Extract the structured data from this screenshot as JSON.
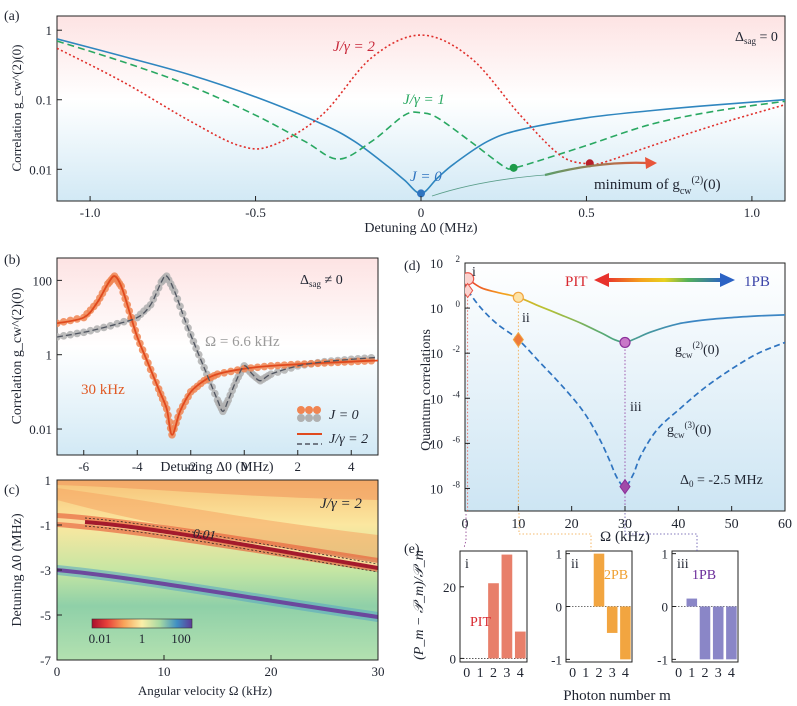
{
  "chart_data": [
    {
      "panel": "(a)",
      "type": "line",
      "title": "",
      "xlabel": "Detuning Δ0 (MHz)",
      "ylabel": "Correlation g_cw^(2)(0)",
      "yscale": "log",
      "xlim": [
        -1.1,
        1.1
      ],
      "ylim": [
        0.0035,
        1.6
      ],
      "x_ticks": [
        "-1.0",
        "-0.5",
        "0",
        "0.5",
        "1.0"
      ],
      "x_tick_values": [
        -1.0,
        -0.5,
        0,
        0.5,
        1.0
      ],
      "y_ticks": [
        "1",
        "0.1",
        "0.01"
      ],
      "y_tick_values": [
        1,
        0.1,
        0.01
      ],
      "annotations": [
        "Δsag = 0",
        "J/γ = 2",
        "J/γ = 1",
        "J = 0",
        "minimum of g_cw^(2)(0)"
      ],
      "series": [
        {
          "name": "J = 0",
          "style": "solid",
          "color": "#2f86bf",
          "x": [
            -1.1,
            -0.9,
            -0.7,
            -0.5,
            -0.3,
            -0.2,
            -0.1,
            -0.05,
            0,
            0.05,
            0.1,
            0.2,
            0.3,
            0.5,
            0.7,
            0.9,
            1.1
          ],
          "y": [
            0.75,
            0.42,
            0.23,
            0.11,
            0.045,
            0.025,
            0.011,
            0.007,
            0.0045,
            0.0075,
            0.012,
            0.025,
            0.037,
            0.055,
            0.07,
            0.085,
            0.1
          ]
        },
        {
          "name": "J/γ = 1",
          "style": "dashed",
          "color": "#2aa862",
          "x": [
            -1.1,
            -0.9,
            -0.7,
            -0.5,
            -0.35,
            -0.25,
            -0.15,
            -0.05,
            0,
            0.05,
            0.15,
            0.25,
            0.28,
            0.35,
            0.5,
            0.7,
            0.9,
            1.1
          ],
          "y": [
            0.7,
            0.35,
            0.16,
            0.06,
            0.025,
            0.014,
            0.025,
            0.06,
            0.065,
            0.055,
            0.025,
            0.011,
            0.0105,
            0.013,
            0.022,
            0.045,
            0.07,
            0.095
          ]
        },
        {
          "name": "J/γ = 2",
          "style": "dotted",
          "color": "#e0302c",
          "x": [
            -1.1,
            -0.9,
            -0.7,
            -0.55,
            -0.45,
            -0.3,
            -0.15,
            0,
            0.15,
            0.3,
            0.42,
            0.5,
            0.55,
            0.7,
            0.9,
            1.1
          ],
          "y": [
            0.55,
            0.18,
            0.05,
            0.022,
            0.022,
            0.06,
            0.4,
            0.85,
            0.4,
            0.06,
            0.016,
            0.012,
            0.0125,
            0.022,
            0.045,
            0.085
          ]
        }
      ],
      "highlight_points": [
        {
          "x": 0,
          "y": 0.0045,
          "color": "#2f74c0"
        },
        {
          "x": 0.28,
          "y": 0.0105,
          "color": "#1e9b4a"
        },
        {
          "x": 0.51,
          "y": 0.0122,
          "color": "#b81f2a"
        }
      ]
    },
    {
      "panel": "(b)",
      "type": "line",
      "xlabel": "Detuning Δ0 (MHz)",
      "ylabel": "Correlation g_cw^(2)(0)",
      "yscale": "log",
      "xlim": [
        -7,
        5
      ],
      "ylim": [
        0.002,
        400
      ],
      "x_ticks": [
        "-6",
        "-4",
        "-2",
        "0",
        "2",
        "4"
      ],
      "x_tick_values": [
        -6,
        -4,
        -2,
        0,
        2,
        4
      ],
      "y_ticks": [
        "100",
        "1",
        "0.01"
      ],
      "y_tick_values": [
        100,
        1,
        0.01
      ],
      "annotations": [
        "Δsag ≠ 0",
        "Ω = 6.6 kHz",
        "30 kHz"
      ],
      "legend": [
        "J = 0",
        "J/γ = 2"
      ],
      "series": [
        {
          "name": "30 kHz",
          "style": "solid",
          "color": "#e04a1e",
          "x": [
            -7,
            -6,
            -5.5,
            -5.1,
            -4.85,
            -4.6,
            -4.3,
            -4,
            -3.6,
            -3.2,
            -2.9,
            -2.7,
            -2.4,
            -2,
            -1.5,
            -1,
            0,
            1,
            2,
            3,
            4,
            5
          ],
          "y": [
            7,
            10,
            25,
            80,
            130,
            70,
            15,
            3,
            0.6,
            0.12,
            0.035,
            0.007,
            0.03,
            0.1,
            0.2,
            0.3,
            0.42,
            0.5,
            0.55,
            0.6,
            0.65,
            0.7
          ]
        },
        {
          "name": "Ω = 6.6 kHz",
          "style": "dashed",
          "color": "#505560",
          "x": [
            -7,
            -6,
            -5,
            -4,
            -3.5,
            -3.1,
            -2.9,
            -2.6,
            -2.2,
            -1.8,
            -1.4,
            -1,
            -0.8,
            -0.6,
            -0.3,
            0,
            0.3,
            0.6,
            1,
            2,
            3,
            4,
            5
          ],
          "y": [
            3,
            4,
            6,
            10,
            22,
            90,
            130,
            50,
            8,
            1.5,
            0.3,
            0.06,
            0.03,
            0.06,
            0.2,
            0.5,
            0.3,
            0.2,
            0.3,
            0.5,
            0.65,
            0.75,
            0.85
          ]
        }
      ]
    },
    {
      "panel": "(c)",
      "type": "heatmap",
      "xlabel": "Angular velocity Ω (kHz)",
      "ylabel": "Detuning Δ0 (MHz)",
      "xlim": [
        0,
        30
      ],
      "ylim": [
        -7,
        1
      ],
      "x_ticks": [
        "0",
        "10",
        "20",
        "30"
      ],
      "x_tick_values": [
        0,
        10,
        20,
        30
      ],
      "y_ticks": [
        "1",
        "-1",
        "-3",
        "-5",
        "-7"
      ],
      "y_tick_values": [
        1,
        -1,
        -3,
        -5,
        -7
      ],
      "colorbar_labels": [
        "0.01",
        "1",
        "100"
      ],
      "contour_label": "0.01",
      "annotation": "J/γ = 2"
    },
    {
      "panel": "(d)",
      "type": "line",
      "xlabel": "Ω (kHz)",
      "ylabel": "Quantum correlations",
      "yscale": "log",
      "xlim": [
        0,
        60
      ],
      "ylim": [
        1e-09,
        100
      ],
      "x_ticks": [
        "0",
        "10",
        "20",
        "30",
        "40",
        "50",
        "60"
      ],
      "x_tick_values": [
        0,
        10,
        20,
        30,
        40,
        50,
        60
      ],
      "y_ticks": [
        "10^2",
        "10^0",
        "10^-2",
        "10^-4",
        "10^-6",
        "10^-8"
      ],
      "y_tick_values": [
        2,
        0,
        -2,
        -4,
        -6,
        -8
      ],
      "annotations": [
        "PIT",
        "1PB",
        "Δ0 = -2.5 MHz",
        "i",
        "ii",
        "iii",
        "g_cw^(2)(0)",
        "g_cw^(3)(0)"
      ],
      "series": [
        {
          "name": "g_cw^(2)(0)",
          "style": "solid",
          "x": [
            0.5,
            3,
            6,
            10,
            14,
            18,
            22,
            26,
            28,
            30,
            32,
            35,
            40,
            45,
            50,
            55,
            60
          ],
          "y": [
            20,
            8,
            5,
            3,
            1.2,
            0.5,
            0.2,
            0.07,
            0.04,
            0.03,
            0.045,
            0.09,
            0.2,
            0.3,
            0.38,
            0.45,
            0.5
          ]
        },
        {
          "name": "g_cw^(3)(0)",
          "style": "dashed",
          "color": "#2f74c0",
          "x": [
            0.5,
            3,
            6,
            10,
            14,
            18,
            22,
            25,
            27,
            28.5,
            30,
            31.5,
            33,
            36,
            40,
            45,
            50,
            55,
            60
          ],
          "y": [
            6,
            1,
            0.2,
            0.04,
            0.004,
            0.0004,
            3e-05,
            2e-06,
            2e-07,
            3e-08,
            1.2e-08,
            4e-08,
            3e-07,
            4e-06,
            3e-05,
            0.0003,
            0.002,
            0.01,
            0.03
          ]
        }
      ],
      "markers": [
        {
          "label": "i",
          "x": 0.5,
          "y2": 20,
          "y3": 6
        },
        {
          "label": "ii",
          "x": 10,
          "y2": 3,
          "y3": 0.04
        },
        {
          "label": "iii",
          "x": 30,
          "y2": 0.03,
          "y3": 1.2e-08
        }
      ]
    },
    {
      "panel": "(e)",
      "type": "bar",
      "xlabel": "Photon number m",
      "ylabel": "(P_m − 𝒫_m)/𝒫_m",
      "categories": [
        "0",
        "1",
        "2",
        "3",
        "4"
      ],
      "subplots": [
        {
          "label": "i",
          "title": "PIT",
          "ylim": [
            -1,
            30
          ],
          "y_ticks": [
            "20",
            "0"
          ],
          "values": [
            0,
            0,
            21,
            29,
            7.5
          ],
          "color": "#e87f6a"
        },
        {
          "label": "ii",
          "title": "2PB",
          "ylim": [
            -1.05,
            1.05
          ],
          "y_ticks": [
            "1",
            "0",
            "-1"
          ],
          "values": [
            0,
            0,
            1,
            -0.5,
            -1
          ],
          "color": "#f2a540"
        },
        {
          "label": "iii",
          "title": "1PB",
          "ylim": [
            -1.05,
            1.05
          ],
          "y_ticks": [
            "1",
            "0",
            "-1"
          ],
          "values": [
            0,
            0.15,
            -1,
            -1,
            -1
          ],
          "color": "#8a86c7"
        }
      ]
    }
  ]
}
